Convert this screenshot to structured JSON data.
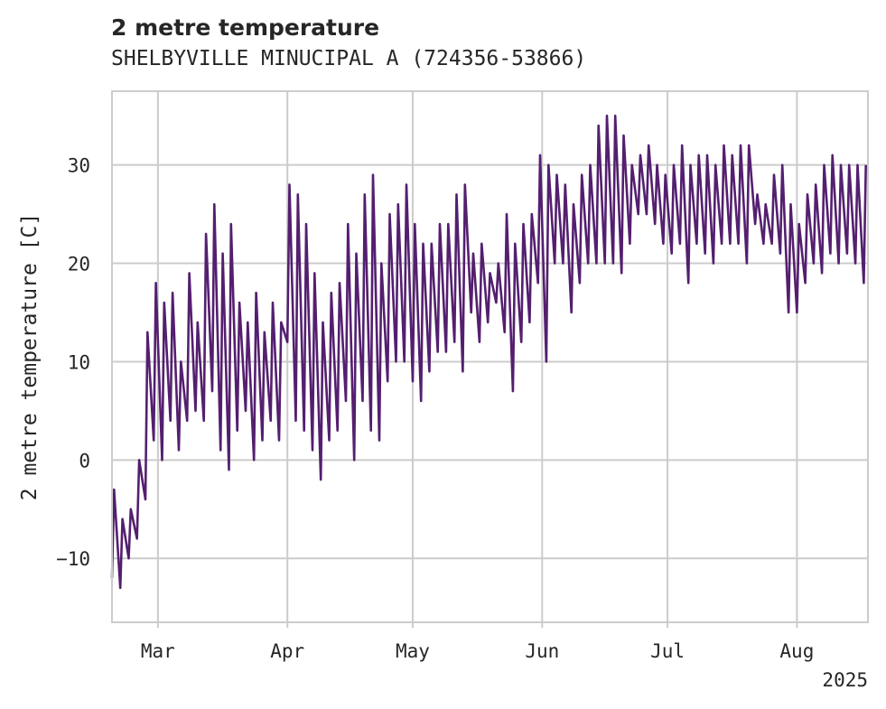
{
  "chart_data": {
    "type": "line",
    "title": "2 metre temperature",
    "subtitle": "SHELBYVILLE MINUCIPAL A (724356-53866)",
    "xlabel": "",
    "ylabel": "2 metre temperature [C]",
    "year_label": "2025",
    "grid": true,
    "legend": "none",
    "ylim": [
      -16.5,
      37.5
    ],
    "xlim": [
      "2025-02-18",
      "2025-08-18"
    ],
    "yticks": [
      -10,
      0,
      10,
      20,
      30
    ],
    "ytick_labels": [
      "−10",
      "0",
      "10",
      "20",
      "30"
    ],
    "xticks": [
      "2025-03-01",
      "2025-04-01",
      "2025-05-01",
      "2025-06-01",
      "2025-07-01",
      "2025-08-01"
    ],
    "xtick_labels": [
      "Mar",
      "Apr",
      "May",
      "Jun",
      "Jul",
      "Aug"
    ],
    "series": [
      {
        "color": "#541f6f",
        "x": [
          "2025-02-18",
          "2025-02-20",
          "2025-02-22",
          "2025-02-24",
          "2025-02-26",
          "2025-02-28",
          "2025-03-02",
          "2025-03-04",
          "2025-03-06",
          "2025-03-08",
          "2025-03-10",
          "2025-03-12",
          "2025-03-14",
          "2025-03-16",
          "2025-03-18",
          "2025-03-20",
          "2025-03-22",
          "2025-03-24",
          "2025-03-26",
          "2025-03-28",
          "2025-03-30",
          "2025-04-01",
          "2025-04-03",
          "2025-04-05",
          "2025-04-07",
          "2025-04-09",
          "2025-04-11",
          "2025-04-13",
          "2025-04-15",
          "2025-04-17",
          "2025-04-19",
          "2025-04-21",
          "2025-04-23",
          "2025-04-25",
          "2025-04-27",
          "2025-04-29",
          "2025-05-01",
          "2025-05-03",
          "2025-05-05",
          "2025-05-07",
          "2025-05-09",
          "2025-05-11",
          "2025-05-13",
          "2025-05-15",
          "2025-05-17",
          "2025-05-19",
          "2025-05-21",
          "2025-05-23",
          "2025-05-25",
          "2025-05-27",
          "2025-05-29",
          "2025-05-31",
          "2025-06-02",
          "2025-06-04",
          "2025-06-06",
          "2025-06-08",
          "2025-06-10",
          "2025-06-12",
          "2025-06-14",
          "2025-06-16",
          "2025-06-18",
          "2025-06-20",
          "2025-06-22",
          "2025-06-24",
          "2025-06-26",
          "2025-06-28",
          "2025-06-30",
          "2025-07-02",
          "2025-07-04",
          "2025-07-06",
          "2025-07-08",
          "2025-07-10",
          "2025-07-12",
          "2025-07-14",
          "2025-07-16",
          "2025-07-18",
          "2025-07-20",
          "2025-07-22",
          "2025-07-24",
          "2025-07-26",
          "2025-07-28",
          "2025-07-30",
          "2025-08-01",
          "2025-08-03",
          "2025-08-05",
          "2025-08-07",
          "2025-08-09",
          "2025-08-11",
          "2025-08-13",
          "2025-08-15",
          "2025-08-17"
        ],
        "min": [
          -12,
          -13,
          -10,
          -8,
          -4,
          2,
          0,
          4,
          1,
          4,
          5,
          4,
          7,
          1,
          -1,
          3,
          5,
          0,
          2,
          4,
          2,
          12,
          4,
          3,
          1,
          -2,
          2,
          3,
          6,
          0,
          6,
          3,
          2,
          8,
          10,
          10,
          8,
          6,
          9,
          11,
          11,
          12,
          9,
          15,
          12,
          14,
          16,
          13,
          7,
          12,
          14,
          18,
          10,
          20,
          20,
          15,
          18,
          20,
          20,
          20,
          20,
          19,
          22,
          25,
          25,
          24,
          22,
          21,
          22,
          18,
          22,
          21,
          20,
          22,
          22,
          22,
          20,
          24,
          22,
          22,
          21,
          15,
          15,
          18,
          20,
          19,
          21,
          20,
          21,
          20,
          18
        ],
        "max": [
          -3,
          -6,
          -5,
          0,
          13,
          18,
          16,
          17,
          10,
          19,
          14,
          23,
          26,
          21,
          24,
          16,
          14,
          17,
          13,
          16,
          14,
          28,
          27,
          24,
          19,
          14,
          17,
          18,
          24,
          21,
          27,
          29,
          20,
          25,
          26,
          28,
          24,
          22,
          22,
          24,
          24,
          27,
          28,
          21,
          22,
          19,
          20,
          25,
          22,
          24,
          25,
          31,
          30,
          29,
          28,
          26,
          29,
          30,
          34,
          35,
          35,
          33,
          30,
          31,
          32,
          30,
          29,
          30,
          32,
          30,
          31,
          31,
          30,
          32,
          31,
          32,
          32,
          27,
          26,
          29,
          30,
          26,
          24,
          27,
          28,
          30,
          31,
          30,
          30,
          30,
          30
        ]
      }
    ]
  }
}
